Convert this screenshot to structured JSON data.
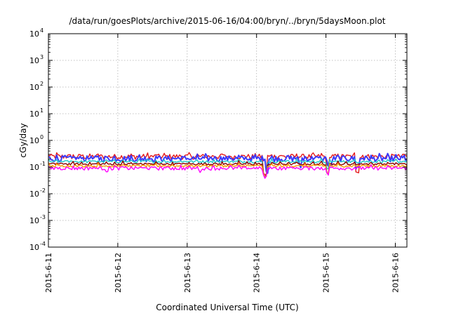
{
  "chart_data": {
    "type": "line",
    "title": "/data/run/goesPlots/archive/2015-06-16/04:00/bryn/../bryn/5daysMoon.plot",
    "xlabel": "Coordinated Universal Time (UTC)",
    "ylabel": "cGy/day",
    "y_scale": "log",
    "ylim": [
      0.0001,
      10000
    ],
    "y_ticks": [
      {
        "base": "10",
        "exp": "-4",
        "value": 0.0001
      },
      {
        "base": "10",
        "exp": "-3",
        "value": 0.001
      },
      {
        "base": "10",
        "exp": "-2",
        "value": 0.01
      },
      {
        "base": "10",
        "exp": "-1",
        "value": 0.1
      },
      {
        "base": "10",
        "exp": "0",
        "value": 1
      },
      {
        "base": "10",
        "exp": "1",
        "value": 10
      },
      {
        "base": "10",
        "exp": "2",
        "value": 100
      },
      {
        "base": "10",
        "exp": "3",
        "value": 1000
      },
      {
        "base": "10",
        "exp": "4",
        "value": 10000
      }
    ],
    "xlim": [
      "2015-06-11T00:00",
      "2015-06-16T04:00"
    ],
    "x_ticks": [
      "2015-6-11",
      "2015-6-12",
      "2015-6-13",
      "2015-6-14",
      "2015-6-15",
      "2015-6-16"
    ],
    "grid": true,
    "legend": "none",
    "series": [
      {
        "color": "#e41a1c",
        "base": 0.25,
        "variation": 0.45,
        "dips": [
          [
            3.12,
            0.22
          ],
          [
            4.02,
            0.4
          ],
          [
            4.45,
            0.3
          ]
        ]
      },
      {
        "color": "#3a3aff",
        "base": 0.21,
        "variation": 0.5,
        "dips": [
          [
            3.15,
            0.35
          ],
          [
            3.63,
            0.5
          ],
          [
            4.05,
            0.5
          ],
          [
            4.45,
            0.45
          ]
        ]
      },
      {
        "color": "#1ec8c8",
        "base": 0.16,
        "variation": 0.2,
        "dips": [
          [
            3.12,
            0.3
          ],
          [
            4.02,
            0.5
          ]
        ]
      },
      {
        "color": "#8b0000",
        "base": 0.13,
        "variation": 0.18,
        "dips": [
          [
            3.12,
            0.35
          ],
          [
            4.02,
            0.5
          ]
        ]
      },
      {
        "color": "#ff9900",
        "base": 0.11,
        "variation": 0.18,
        "dips": [
          [
            3.12,
            0.4
          ],
          [
            4.02,
            0.55
          ]
        ]
      },
      {
        "color": "#ff00ff",
        "base": 0.09,
        "variation": 0.3,
        "dips": [
          [
            3.12,
            0.45
          ],
          [
            4.02,
            0.6
          ],
          [
            2.2,
            0.75
          ],
          [
            0.85,
            0.8
          ]
        ]
      }
    ]
  }
}
